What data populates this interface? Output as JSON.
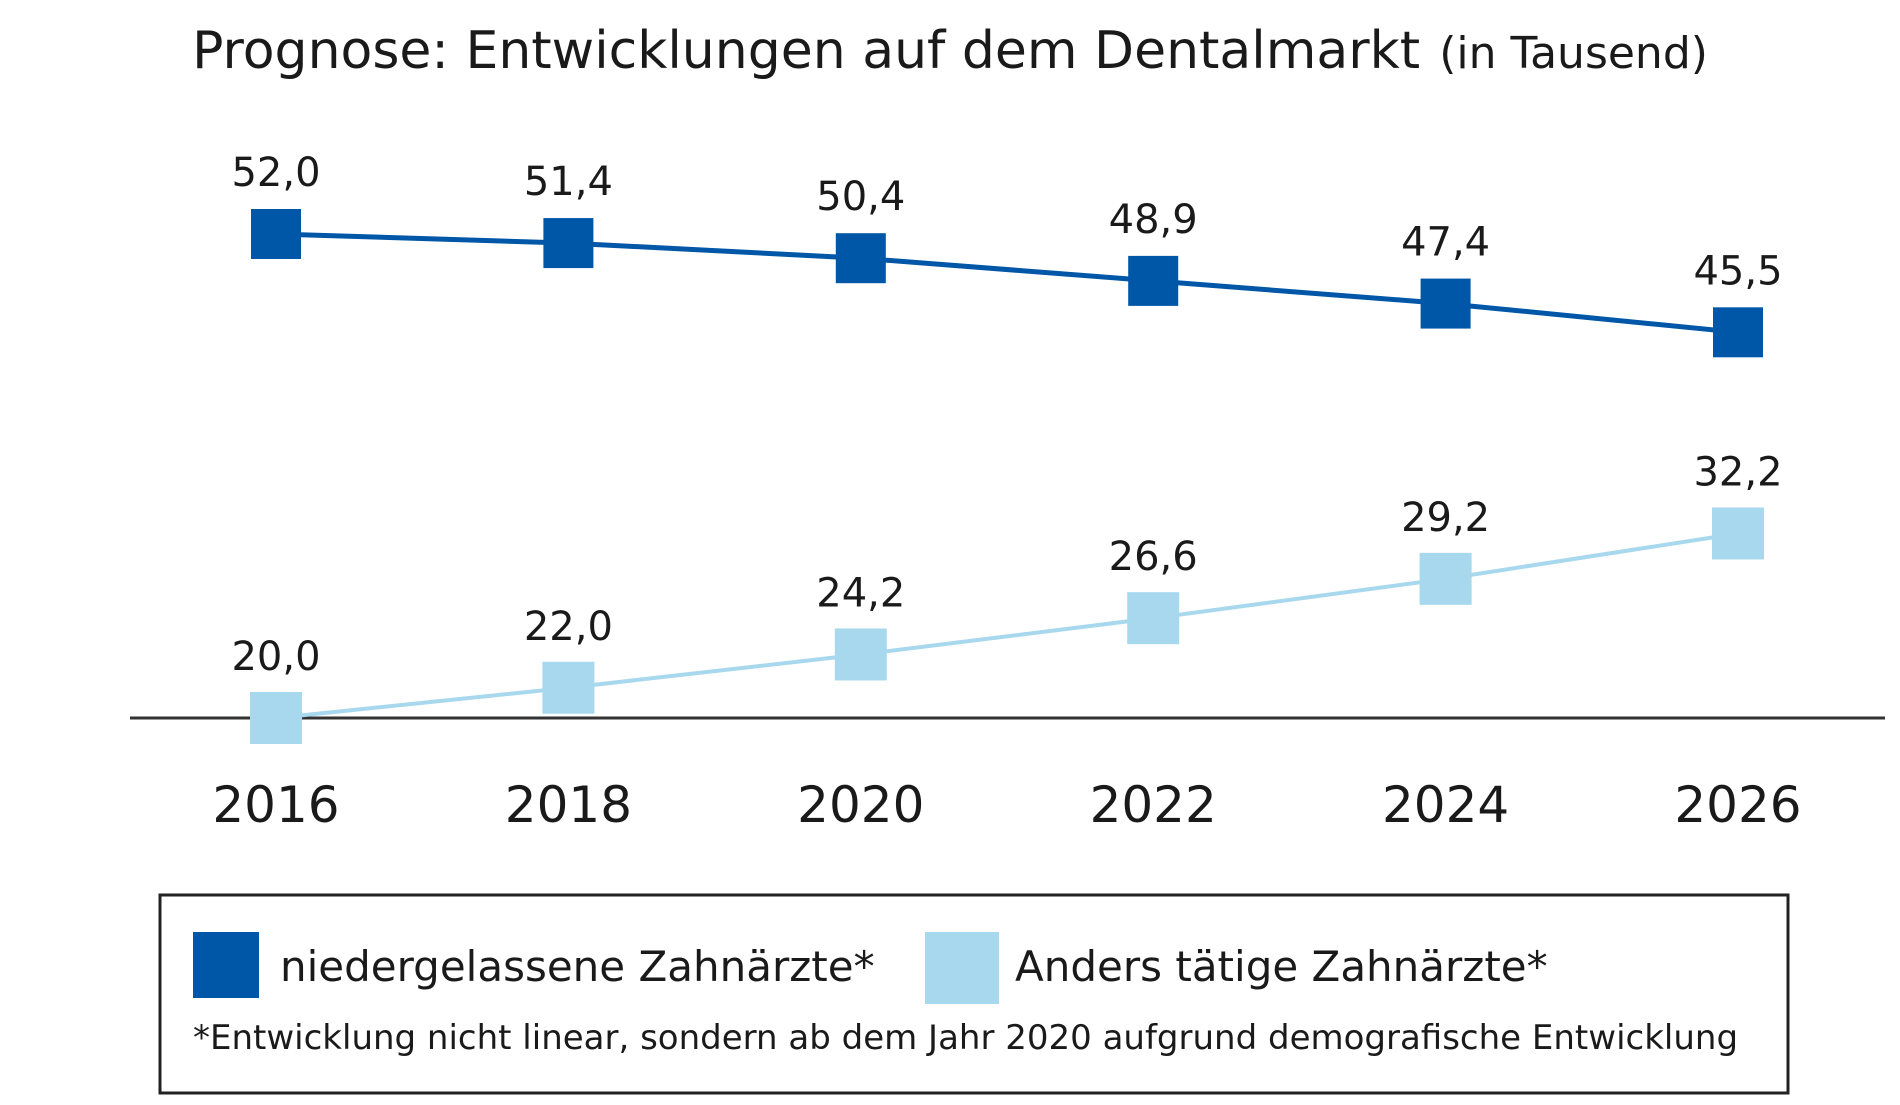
{
  "chart_data": {
    "type": "line",
    "title": "Prognose: Entwicklungen auf dem Dentalmarkt",
    "subtitle": "(in Tausend)",
    "xlabel": "",
    "ylabel": "",
    "categories": [
      "2016",
      "2018",
      "2020",
      "2022",
      "2024",
      "2026"
    ],
    "series": [
      {
        "name": "niedergelassene Zahnärzte*",
        "color": "#0057a8",
        "values": [
          52.0,
          51.4,
          50.4,
          48.9,
          47.4,
          45.5
        ],
        "labels": [
          "52,0",
          "51,4",
          "50,4",
          "48,9",
          "47,4",
          "45,5"
        ]
      },
      {
        "name": "Anders tätige Zahnärzte*",
        "color": "#a8d8ee",
        "values": [
          20.0,
          22.0,
          24.2,
          26.6,
          29.2,
          32.2
        ],
        "labels": [
          "20,0",
          "22,0",
          "24,2",
          "26,6",
          "29,2",
          "32,2"
        ]
      }
    ],
    "ylim": [
      20,
      52
    ],
    "grid": false,
    "legend_position": "bottom",
    "footnote": "*Entwicklung nicht linear, sondern ab dem Jahr 2020 aufgrund demografische Entwicklung"
  }
}
